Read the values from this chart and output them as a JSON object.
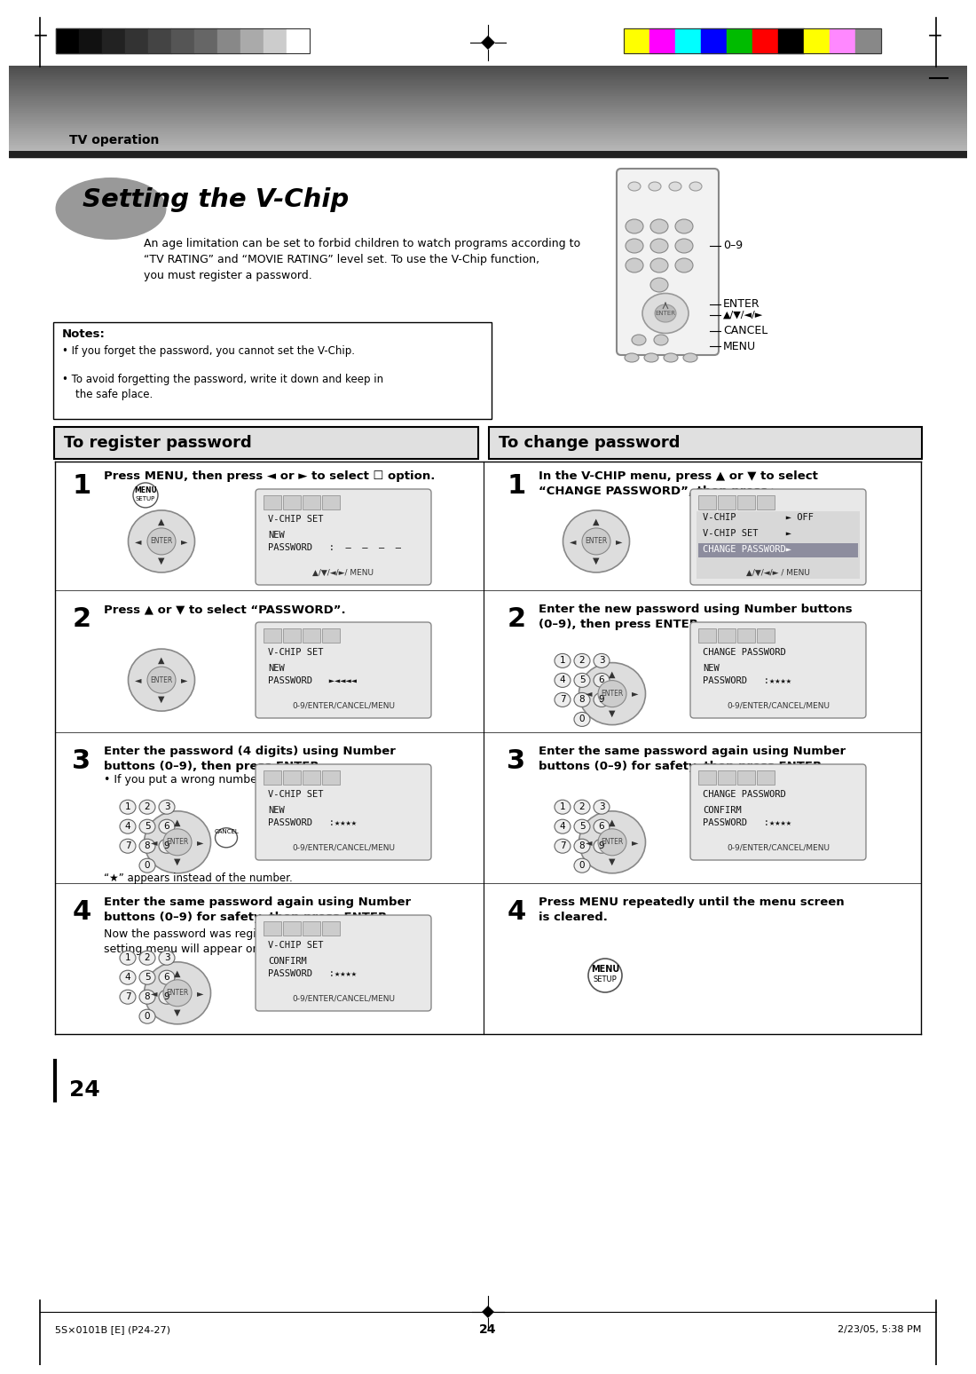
{
  "page_bg": "#ffffff",
  "header_gradient_top": "#888888",
  "header_gradient_bottom": "#333333",
  "header_text": "TV operation",
  "title": "Setting the V-Chip",
  "intro_text": "An age limitation can be set to forbid children to watch programs according to\n“TV RATING” and “MOVIE RATING” level set. To use the V-Chip function,\nyou must register a password.",
  "notes_title": "Notes:",
  "notes": [
    "If you forget the password, you cannot set the V-Chip.",
    "To avoid forgetting the password, write it down and keep in\n    the safe place."
  ],
  "left_section_title": "To register password",
  "right_section_title": "To change password",
  "section_title_bg": "#dddddd",
  "section_title_border": "#000000",
  "bar_colors_left": [
    "#000000",
    "#111111",
    "#222222",
    "#333333",
    "#444444",
    "#555555",
    "#666666",
    "#888888",
    "#aaaaaa",
    "#cccccc",
    "#ffffff"
  ],
  "bar_colors_right": [
    "#ffff00",
    "#ff00ff",
    "#00ffff",
    "#0000ff",
    "#00bb00",
    "#ff0000",
    "#000000",
    "#ffff00",
    "#ff88ff",
    "#888888"
  ],
  "remote_label_09": "0–9",
  "remote_label_enter": "ENTER",
  "remote_label_nav": "▲/▼/◄/►",
  "remote_label_cancel": "CANCEL",
  "remote_label_menu": "MENU",
  "left_steps": [
    {
      "num": "1",
      "text_bold": "Press MENU, then press ◄ or ► to select ",
      "text_icon": "☐",
      "text_rest": " option.",
      "screen_title": "V-CHIP SET",
      "screen_line1": "NEW",
      "screen_line2": "PASSWORD   :  –  –  –  –",
      "screen_footer": "▲/▼/◄/►/ MENU",
      "has_menu_setup": true,
      "has_nav_remote": true,
      "has_numpad": false,
      "has_cancel": false
    },
    {
      "num": "2",
      "text_bold": "Press ▲ or ▼ to select “PASSWORD”.",
      "text_rest": "",
      "screen_title": "V-CHIP SET",
      "screen_line1": "NEW",
      "screen_line2": "PASSWORD   ►◄◄◄◄",
      "screen_footer": "0-9/ENTER/CANCEL/MENU",
      "has_menu_setup": false,
      "has_nav_remote": true,
      "has_numpad": false,
      "has_cancel": false
    },
    {
      "num": "3",
      "text_bold": "Enter the password (4 digits) using Number\nbuttons (0–9), then press ENTER.",
      "text_bullet": "• If you put a wrong number, press CANCEL.",
      "screen_title": "V-CHIP SET",
      "screen_line1": "NEW",
      "screen_line2": "PASSWORD   :★★★★",
      "screen_footer": "0-9/ENTER/CANCEL/MENU",
      "asterisk_note": "“★” appears instead of the number.",
      "has_menu_setup": false,
      "has_nav_remote": true,
      "has_numpad": true,
      "has_cancel": true
    },
    {
      "num": "4",
      "text_bold": "Enter the same password again using Number\nbuttons (0–9) for safety, then press ENTER.",
      "text_extra": "Now the password was registered and V-Chip\nsetting menu will appear on the display.",
      "screen_title": "V-CHIP SET",
      "screen_line1": "CONFIRM",
      "screen_line2": "PASSWORD   :★★★★",
      "screen_footer": "0-9/ENTER/CANCEL/MENU",
      "has_menu_setup": false,
      "has_nav_remote": true,
      "has_numpad": true,
      "has_cancel": false
    }
  ],
  "right_steps": [
    {
      "num": "1",
      "text_bold": "In the V-CHIP menu, press ▲ or ▼ to select\n“CHANGE PASSWORD”, then press ►.",
      "screen_lines_multi": [
        "V-CHIP         ► OFF",
        "V-CHIP SET     ►",
        "CHANGE PASSWORD►"
      ],
      "screen_footer": "▲/▼/◄/► / MENU",
      "highlight_last": true,
      "has_nav_remote": true,
      "has_numpad": false
    },
    {
      "num": "2",
      "text_bold": "Enter the new password using Number buttons\n(0–9), then press ENTER.",
      "screen_title": "CHANGE PASSWORD",
      "screen_line1": "NEW",
      "screen_line2": "PASSWORD   :★★★★",
      "screen_footer": "0-9/ENTER/CANCEL/MENU",
      "has_nav_remote": true,
      "has_numpad": true
    },
    {
      "num": "3",
      "text_bold": "Enter the same password again using Number\nbuttons (0–9) for safety, then press ENTER.",
      "screen_title": "CHANGE PASSWORD",
      "screen_line1": "CONFIRM",
      "screen_line2": "PASSWORD   :★★★★",
      "screen_footer": "0-9/ENTER/CANCEL/MENU",
      "has_nav_remote": true,
      "has_numpad": true
    },
    {
      "num": "4",
      "text_bold": "Press MENU repeatedly until the menu screen\nis cleared.",
      "has_nav_remote": false,
      "has_numpad": false,
      "has_menu_only": true
    }
  ],
  "footer_left": "5S×0101B [E] (P24-27)",
  "footer_center": "24",
  "footer_right": "2/23/05, 5:38 PM",
  "page_number": "24"
}
